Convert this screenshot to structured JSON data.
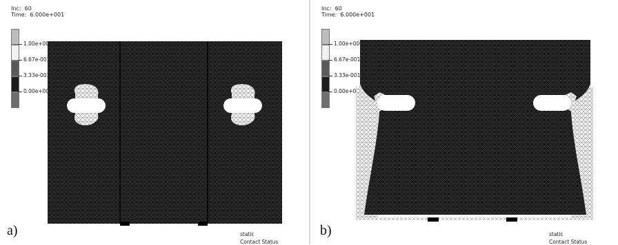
{
  "panels": [
    {
      "id": "a",
      "label": "a)",
      "inc_line": "Inc:  60",
      "time_line": "Time:  6.000e+001",
      "legend": [
        {
          "label": "1.00e+000",
          "color": "#bdbdbd"
        },
        {
          "label": "6.67e-001",
          "color": "#f2f2f2"
        },
        {
          "label": "3.33e-001",
          "color": "#5a5a5a"
        },
        {
          "label": "0.00e+000",
          "color": "#1c1c1c"
        },
        {
          "label": "",
          "color": "#6e6e6e"
        }
      ],
      "status_line1": "static",
      "status_line2": "Contact Status"
    },
    {
      "id": "b",
      "label": "b)",
      "inc_line": "Inc:  60",
      "time_line": "Time:  6.000e+001",
      "legend": [
        {
          "label": "1.00e+000",
          "color": "#bdbdbd"
        },
        {
          "label": "6.67e-001",
          "color": "#f2f2f2"
        },
        {
          "label": "3.33e-001",
          "color": "#5a5a5a"
        },
        {
          "label": "0.00e+000",
          "color": "#1c1c1c"
        },
        {
          "label": "",
          "color": "#6e6e6e"
        }
      ],
      "status_line1": "static",
      "status_line2": "Contact Status"
    }
  ],
  "colors": {
    "mesh_dark": "#1b1b1b",
    "mesh_line": "#3a3a3a",
    "contact_white": "#f4f4f4",
    "hole": "#ffffff"
  }
}
